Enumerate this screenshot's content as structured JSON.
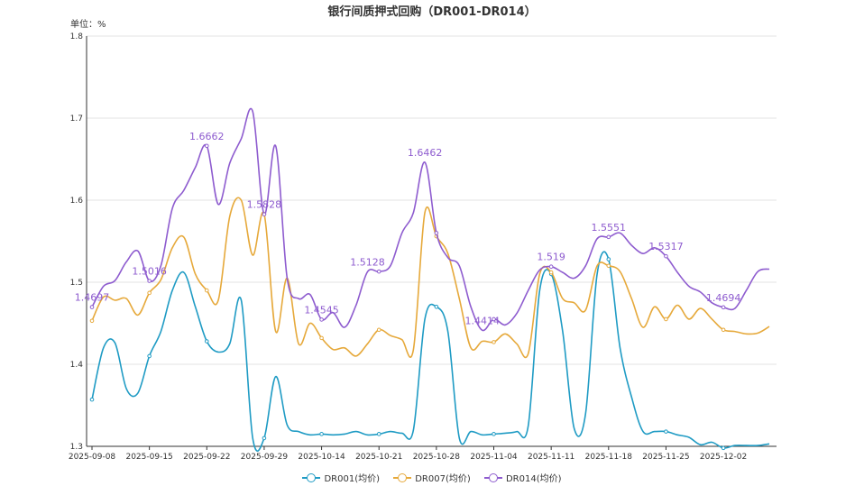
{
  "chart_data": {
    "type": "line",
    "title": "银行间质押式回购（DR001-DR014）",
    "unit_label": "单位：%",
    "ylim": [
      1.3,
      1.8
    ],
    "y_ticks": [
      "1.3",
      "1.4",
      "1.5",
      "1.6",
      "1.7",
      "1.8"
    ],
    "x_ticks": [
      "2025-09-08",
      "2025-09-15",
      "2025-09-22",
      "2025-09-29",
      "2025-10-14",
      "2025-10-21",
      "2025-10-28",
      "2025-11-04",
      "2025-11-11",
      "2025-11-18",
      "2025-11-25",
      "2025-12-02"
    ],
    "grid": true,
    "legend_position": "bottom",
    "x": [
      "2025-09-08",
      "2025-09-09",
      "2025-09-10",
      "2025-09-11",
      "2025-09-12",
      "2025-09-15",
      "2025-09-16",
      "2025-09-17",
      "2025-09-18",
      "2025-09-19",
      "2025-09-22",
      "2025-09-23",
      "2025-09-24",
      "2025-09-25",
      "2025-09-26",
      "2025-09-29",
      "2025-09-30",
      "2025-10-09",
      "2025-10-10",
      "2025-10-13",
      "2025-10-14",
      "2025-10-15",
      "2025-10-16",
      "2025-10-17",
      "2025-10-20",
      "2025-10-21",
      "2025-10-22",
      "2025-10-23",
      "2025-10-24",
      "2025-10-27",
      "2025-10-28",
      "2025-10-29",
      "2025-10-30",
      "2025-10-31",
      "2025-11-03",
      "2025-11-04",
      "2025-11-05",
      "2025-11-06",
      "2025-11-07",
      "2025-11-10",
      "2025-11-11",
      "2025-11-12",
      "2025-11-13",
      "2025-11-14",
      "2025-11-17",
      "2025-11-18",
      "2025-11-19",
      "2025-11-20",
      "2025-11-21",
      "2025-11-24",
      "2025-11-25",
      "2025-11-26",
      "2025-11-27",
      "2025-11-28",
      "2025-12-01",
      "2025-12-02",
      "2025-12-03",
      "2025-12-04",
      "2025-12-05",
      "2025-12-08"
    ],
    "x_tick_indices": [
      0,
      5,
      10,
      15,
      20,
      25,
      30,
      35,
      40,
      45,
      50,
      55
    ],
    "series": [
      {
        "name": "DR001(均价)",
        "color": "#1f9bc4",
        "values": [
          1.357,
          1.42,
          1.426,
          1.37,
          1.365,
          1.41,
          1.44,
          1.49,
          1.512,
          1.47,
          1.428,
          1.415,
          1.425,
          1.478,
          1.31,
          1.31,
          1.385,
          1.326,
          1.318,
          1.314,
          1.315,
          1.314,
          1.315,
          1.318,
          1.314,
          1.315,
          1.318,
          1.316,
          1.32,
          1.455,
          1.47,
          1.44,
          1.31,
          1.318,
          1.314,
          1.315,
          1.316,
          1.318,
          1.325,
          1.49,
          1.51,
          1.44,
          1.322,
          1.34,
          1.51,
          1.528,
          1.42,
          1.36,
          1.318,
          1.318,
          1.318,
          1.314,
          1.311,
          1.302,
          1.305,
          1.298,
          1.301,
          1.301,
          1.301,
          1.303
        ],
        "labeled": []
      },
      {
        "name": "DR007(均价)",
        "color": "#e6a93b",
        "values": [
          1.453,
          1.482,
          1.478,
          1.48,
          1.46,
          1.487,
          1.503,
          1.542,
          1.555,
          1.51,
          1.49,
          1.478,
          1.58,
          1.6,
          1.533,
          1.583,
          1.44,
          1.505,
          1.425,
          1.45,
          1.432,
          1.418,
          1.42,
          1.41,
          1.425,
          1.442,
          1.435,
          1.43,
          1.418,
          1.585,
          1.556,
          1.535,
          1.48,
          1.42,
          1.428,
          1.427,
          1.437,
          1.425,
          1.413,
          1.51,
          1.512,
          1.48,
          1.475,
          1.466,
          1.52,
          1.52,
          1.513,
          1.48,
          1.445,
          1.47,
          1.455,
          1.472,
          1.455,
          1.468,
          1.455,
          1.442,
          1.44,
          1.437,
          1.438,
          1.446
        ],
        "labeled": []
      },
      {
        "name": "DR014(均价)",
        "color": "#8e5ccf",
        "values": [
          1.4697,
          1.495,
          1.502,
          1.525,
          1.538,
          1.5016,
          1.52,
          1.59,
          1.612,
          1.64,
          1.6662,
          1.595,
          1.645,
          1.675,
          1.708,
          1.5828,
          1.666,
          1.505,
          1.48,
          1.485,
          1.4545,
          1.463,
          1.445,
          1.472,
          1.5128,
          1.513,
          1.52,
          1.56,
          1.585,
          1.6462,
          1.56,
          1.53,
          1.52,
          1.47,
          1.4414,
          1.455,
          1.448,
          1.462,
          1.49,
          1.515,
          1.519,
          1.512,
          1.505,
          1.52,
          1.553,
          1.5551,
          1.56,
          1.545,
          1.535,
          1.542,
          1.5317,
          1.512,
          1.495,
          1.488,
          1.475,
          1.4694,
          1.468,
          1.49,
          1.513,
          1.516
        ],
        "labeled": [
          {
            "index": 0,
            "text": "1.4697"
          },
          {
            "index": 5,
            "text": "1.5016"
          },
          {
            "index": 10,
            "text": "1.6662"
          },
          {
            "index": 15,
            "text": "1.5828"
          },
          {
            "index": 20,
            "text": "1.4545"
          },
          {
            "index": 24,
            "text": "1.5128"
          },
          {
            "index": 29,
            "text": "1.6462"
          },
          {
            "index": 34,
            "text": "1.4414"
          },
          {
            "index": 40,
            "text": "1.519"
          },
          {
            "index": 45,
            "text": "1.5551"
          },
          {
            "index": 50,
            "text": "1.5317"
          },
          {
            "index": 55,
            "text": "1.4694"
          }
        ]
      }
    ]
  }
}
